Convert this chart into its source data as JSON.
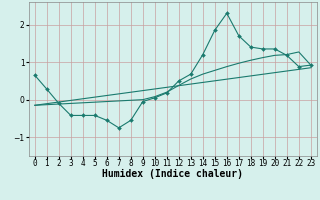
{
  "xlabel": "Humidex (Indice chaleur)",
  "bg_color": "#d6f0ec",
  "grid_color": "#c8a0a0",
  "line_color": "#1a7a6e",
  "xlim": [
    -0.5,
    23.5
  ],
  "ylim": [
    -1.5,
    2.6
  ],
  "yticks": [
    -1,
    0,
    1,
    2
  ],
  "xticks": [
    0,
    1,
    2,
    3,
    4,
    5,
    6,
    7,
    8,
    9,
    10,
    11,
    12,
    13,
    14,
    15,
    16,
    17,
    18,
    19,
    20,
    21,
    22,
    23
  ],
  "series1_x": [
    0,
    1,
    2,
    3,
    4,
    5,
    6,
    7,
    8,
    9,
    10,
    11,
    12,
    13,
    14,
    15,
    16,
    17,
    18,
    19,
    20,
    21,
    22,
    23
  ],
  "series1_y": [
    0.65,
    0.28,
    -0.1,
    -0.42,
    -0.42,
    -0.42,
    -0.55,
    -0.75,
    -0.55,
    -0.05,
    0.05,
    0.18,
    0.5,
    0.68,
    1.2,
    1.85,
    2.3,
    1.7,
    1.4,
    1.35,
    1.35,
    1.18,
    0.88,
    0.92
  ],
  "series2_x": [
    0,
    9,
    10,
    11,
    12,
    13,
    14,
    15,
    16,
    17,
    18,
    19,
    20,
    21,
    22,
    23
  ],
  "series2_y": [
    -0.15,
    0.0,
    0.08,
    0.2,
    0.38,
    0.55,
    0.68,
    0.78,
    0.88,
    0.97,
    1.05,
    1.12,
    1.18,
    1.2,
    1.27,
    0.92
  ],
  "series3_x": [
    0,
    23
  ],
  "series3_y": [
    -0.15,
    0.85
  ]
}
